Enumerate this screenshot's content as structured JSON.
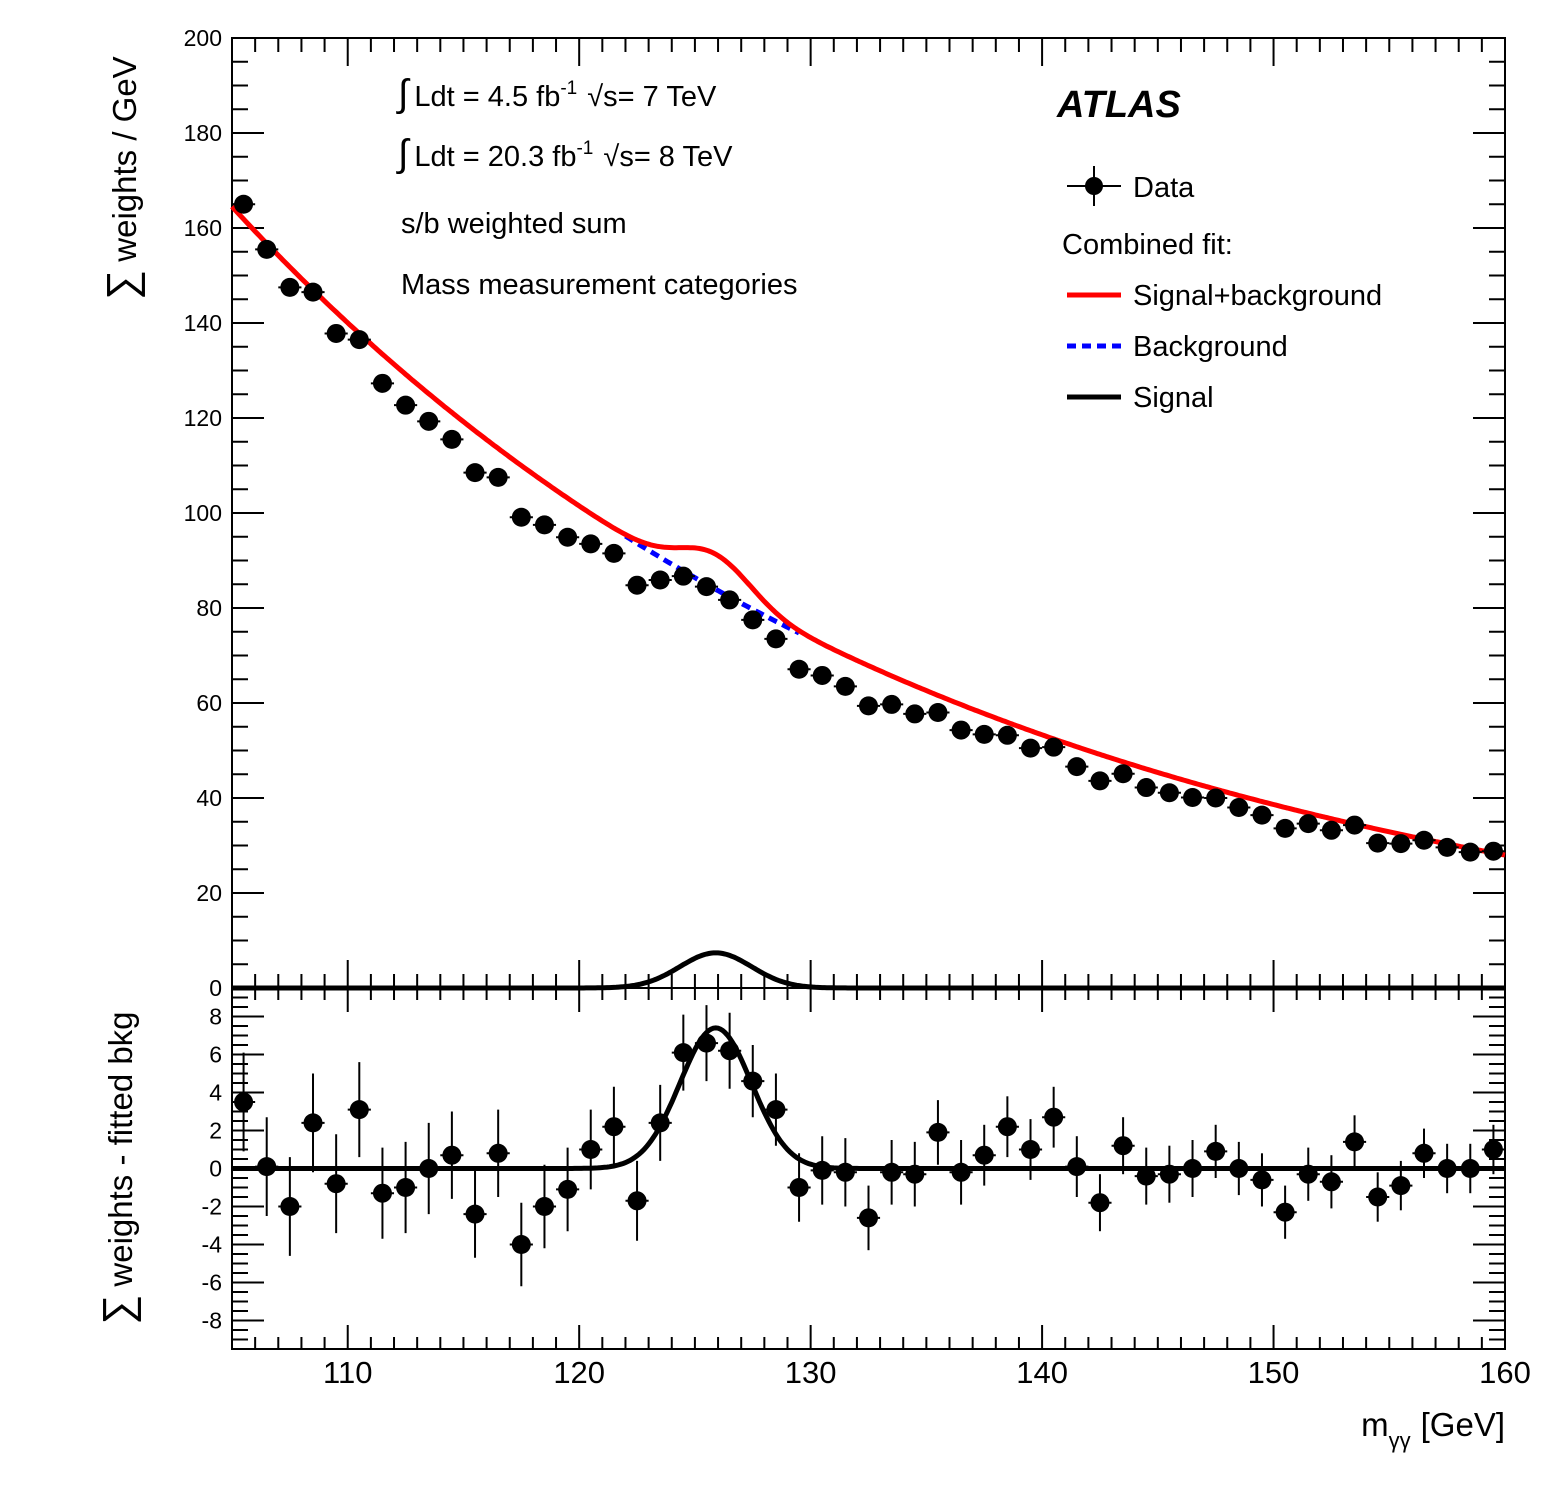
{
  "chart_data": [
    {
      "type": "scatter",
      "panel": "top",
      "x": [
        105.5,
        106.5,
        107.5,
        108.5,
        109.5,
        110.5,
        111.5,
        112.5,
        113.5,
        114.5,
        115.5,
        116.5,
        117.5,
        118.5,
        119.5,
        120.5,
        121.5,
        122.5,
        123.5,
        124.5,
        125.5,
        126.5,
        127.5,
        128.5,
        129.5,
        130.5,
        131.5,
        132.5,
        133.5,
        134.5,
        135.5,
        136.5,
        137.5,
        138.5,
        139.5,
        140.5,
        141.5,
        142.5,
        143.5,
        144.5,
        145.5,
        146.5,
        147.5,
        148.5,
        149.5,
        150.5,
        151.5,
        152.5,
        153.5,
        154.5,
        155.5,
        156.5,
        157.5,
        158.5,
        159.5
      ],
      "series": [
        {
          "name": "Data",
          "values": [
            165.0,
            155.5,
            147.5,
            146.5,
            137.8,
            136.5,
            127.3,
            122.7,
            119.3,
            115.5,
            108.5,
            107.5,
            99.1,
            97.5,
            94.9,
            93.5,
            91.5,
            84.8,
            85.9,
            86.7,
            84.5,
            81.7,
            77.5,
            73.5,
            67.1,
            65.8,
            63.5,
            59.4,
            59.7,
            57.7,
            58.0,
            54.3,
            53.4,
            53.2,
            50.5,
            50.7,
            46.6,
            43.6,
            45.1,
            42.2,
            41.1,
            40.1,
            40.0,
            38.0,
            36.4,
            33.6,
            34.6,
            33.2,
            34.3,
            30.5,
            30.4,
            31.1,
            29.6,
            28.6,
            28.8
          ],
          "errors": [
            1.3,
            1.25,
            1.2,
            1.2,
            1.15,
            1.15,
            1.1,
            1.1,
            1.05,
            1.05,
            1.0,
            1.0,
            0.95,
            0.95,
            0.95,
            0.95,
            0.9,
            0.9,
            0.9,
            0.9,
            0.9,
            0.9,
            0.85,
            0.85,
            0.8,
            0.8,
            0.8,
            0.75,
            0.75,
            0.75,
            0.75,
            0.7,
            0.7,
            0.7,
            0.7,
            0.7,
            0.65,
            0.65,
            0.65,
            0.65,
            0.6,
            0.6,
            0.6,
            0.6,
            0.6,
            0.55,
            0.55,
            0.55,
            0.55,
            0.55,
            0.5,
            0.5,
            0.5,
            0.5,
            0.5
          ]
        }
      ],
      "fit": {
        "background": {
          "name": "Background",
          "model": "exponential",
          "a": 164.5,
          "b": 0.0322,
          "x0": 105,
          "color": "#0000ff"
        },
        "signal": {
          "name": "Signal",
          "model": "gaussian",
          "amplitude": 7.4,
          "mean": 125.9,
          "sigma": 1.55,
          "color": "#000000"
        },
        "total": {
          "name": "Signal+background",
          "color": "#ff0000"
        }
      },
      "xlim": [
        105,
        160
      ],
      "ylim": [
        0,
        200
      ],
      "yticks": [
        0,
        20,
        40,
        60,
        80,
        100,
        120,
        140,
        160,
        180,
        200
      ],
      "ylabel": "weights / GeV",
      "ylabel_symbol": "∑",
      "annotations": {
        "lumi_7_pre": "Ldt = 4.5 fb",
        "lumi_7_sup": "-1",
        "lumi_7_post": "s= 7 TeV",
        "lumi_8_pre": "Ldt = 20.3 fb",
        "lumi_8_sup": "-1",
        "lumi_8_post": "s= 8 TeV",
        "integral_symbol": "∫",
        "sqrt_symbol": "√",
        "weighting": "s/b weighted sum",
        "categories": "Mass measurement categories",
        "experiment": "ATLAS"
      },
      "legend": {
        "data": "Data",
        "combined_title": "Combined fit:",
        "signal_background": "Signal+background",
        "background": "Background",
        "signal": "Signal",
        "position": "top-right"
      }
    },
    {
      "type": "scatter",
      "panel": "bottom",
      "x": [
        105.5,
        106.5,
        107.5,
        108.5,
        109.5,
        110.5,
        111.5,
        112.5,
        113.5,
        114.5,
        115.5,
        116.5,
        117.5,
        118.5,
        119.5,
        120.5,
        121.5,
        122.5,
        123.5,
        124.5,
        125.5,
        126.5,
        127.5,
        128.5,
        129.5,
        130.5,
        131.5,
        132.5,
        133.5,
        134.5,
        135.5,
        136.5,
        137.5,
        138.5,
        139.5,
        140.5,
        141.5,
        142.5,
        143.5,
        144.5,
        145.5,
        146.5,
        147.5,
        148.5,
        149.5,
        150.5,
        151.5,
        152.5,
        153.5,
        154.5,
        155.5,
        156.5,
        157.5,
        158.5,
        159.5
      ],
      "series": [
        {
          "name": "Data",
          "values": [
            3.5,
            0.1,
            -2.0,
            2.4,
            -0.8,
            3.1,
            -1.3,
            -1.0,
            0.0,
            0.7,
            -2.4,
            0.8,
            -4.0,
            -2.0,
            -1.1,
            1.0,
            2.2,
            -1.7,
            2.4,
            6.1,
            6.6,
            6.2,
            4.6,
            3.1,
            -1.0,
            -0.1,
            -0.2,
            -2.6,
            -0.2,
            -0.3,
            1.9,
            -0.2,
            0.7,
            2.2,
            1.0,
            2.7,
            0.1,
            -1.8,
            1.2,
            -0.4,
            -0.3,
            0.0,
            0.9,
            0.0,
            -0.6,
            -2.3,
            -0.3,
            -0.7,
            1.4,
            -1.5,
            -0.9,
            0.8,
            0.0,
            0.0,
            1.0
          ],
          "errors": [
            2.6,
            2.6,
            2.6,
            2.6,
            2.6,
            2.5,
            2.4,
            2.4,
            2.4,
            2.3,
            2.3,
            2.3,
            2.2,
            2.2,
            2.2,
            2.1,
            2.1,
            2.1,
            2.0,
            2.0,
            2.0,
            2.0,
            1.9,
            1.9,
            1.8,
            1.8,
            1.8,
            1.7,
            1.7,
            1.7,
            1.7,
            1.7,
            1.6,
            1.6,
            1.6,
            1.6,
            1.6,
            1.5,
            1.5,
            1.5,
            1.5,
            1.5,
            1.4,
            1.4,
            1.4,
            1.4,
            1.4,
            1.4,
            1.4,
            1.3,
            1.3,
            1.3,
            1.3,
            1.3,
            1.3
          ]
        }
      ],
      "fit": {
        "name": "Signal",
        "model": "gaussian",
        "amplitude": 7.4,
        "mean": 125.9,
        "sigma": 1.55,
        "color": "#000000"
      },
      "xlim": [
        105,
        160
      ],
      "ylim": [
        -9.5,
        9.5
      ],
      "yticks": [
        -8,
        -6,
        -4,
        -2,
        0,
        2,
        4,
        6,
        8
      ],
      "xticks": [
        110,
        120,
        130,
        140,
        150,
        160
      ],
      "ylabel": "weights - fitted bkg",
      "ylabel_symbol": "∑",
      "xlabel_main": "m",
      "xlabel_sub": "γγ",
      "xlabel_unit": "[GeV]"
    }
  ]
}
